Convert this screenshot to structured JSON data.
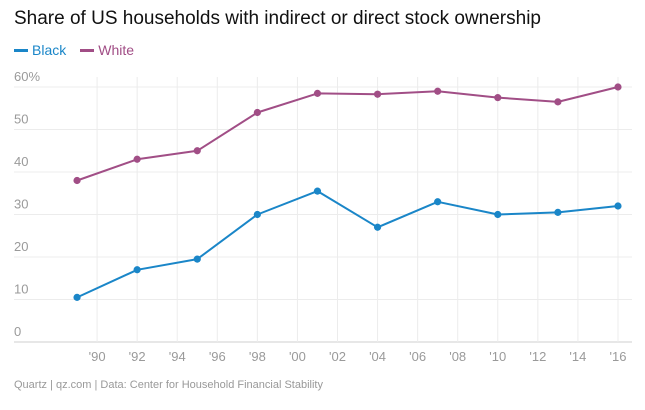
{
  "chart_data": {
    "type": "line",
    "title": "Share of US households with indirect or direct stock ownership",
    "xlabel": "",
    "ylabel": "",
    "ylim": [
      0,
      60
    ],
    "xlim": [
      1987.5,
      2016.5
    ],
    "y_ticks": [
      0,
      10,
      20,
      30,
      40,
      50,
      60
    ],
    "y_tick_labels": [
      "0",
      "10",
      "20",
      "30",
      "40",
      "50",
      "60%"
    ],
    "x_ticks": [
      1990,
      1992,
      1994,
      1996,
      1998,
      2000,
      2002,
      2004,
      2006,
      2008,
      2010,
      2012,
      2014,
      2016
    ],
    "x_tick_labels": [
      "'90",
      "'92",
      "'94",
      "'96",
      "'98",
      "'00",
      "'02",
      "'04",
      "'06",
      "'08",
      "'10",
      "'12",
      "'14",
      "'16"
    ],
    "x": [
      1989,
      1992,
      1995,
      1998,
      2001,
      2004,
      2007,
      2010,
      2013,
      2016
    ],
    "series": [
      {
        "name": "Black",
        "color": "#1a86c8",
        "values": [
          10.5,
          17,
          19.5,
          30,
          35.5,
          27,
          33,
          30,
          30.5,
          32
        ]
      },
      {
        "name": "White",
        "color": "#a14e86",
        "values": [
          38,
          43,
          45,
          54,
          58.5,
          58.3,
          59,
          57.5,
          56.5,
          60
        ]
      }
    ]
  },
  "footer": "Quartz | qz.com | Data: Center for Household Financial Stability"
}
